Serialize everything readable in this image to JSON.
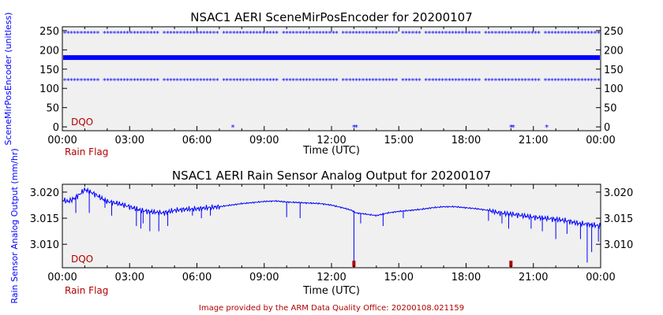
{
  "colors": {
    "data": "#0000ff",
    "flag": "#b00000",
    "plot_bg": "#f0f0f0",
    "axis": "#000000",
    "ylabel": "#0000ff",
    "footer": "#b00000"
  },
  "footer": "Image provided by the ARM Data Quality Office: 20200108.021159",
  "chart_data": [
    {
      "type": "scatter",
      "title": "NSAC1 AERI SceneMirPosEncoder for 20200107",
      "xlabel": "Time (UTC)",
      "ylabel": "SceneMirPosEncoder (unitless)",
      "rain_flag_label": "Rain Flag",
      "dqo_label": "DQO",
      "x_ticks": [
        "00:00",
        "03:00",
        "06:00",
        "09:00",
        "12:00",
        "15:00",
        "18:00",
        "21:00",
        "00:00"
      ],
      "y_ticks": [
        "0",
        "50",
        "100",
        "150",
        "200",
        "250"
      ],
      "xlim_hours": [
        0,
        24
      ],
      "ylim": [
        -10,
        260
      ],
      "grid": false,
      "series": [
        {
          "level": 245,
          "pattern": "dense"
        },
        {
          "level": 180,
          "pattern": "continuous"
        },
        {
          "level": 122,
          "pattern": "dense"
        }
      ],
      "isolated_points": [
        {
          "time_hours": 7.6,
          "value": 0
        },
        {
          "time_hours": 13.0,
          "value": 0
        },
        {
          "time_hours": 13.1,
          "value": 0
        },
        {
          "time_hours": 20.0,
          "value": 0
        },
        {
          "time_hours": 20.1,
          "value": 0
        },
        {
          "time_hours": 21.6,
          "value": 0
        }
      ],
      "rain_flags_hours": []
    },
    {
      "type": "line",
      "title": "NSAC1 AERI Rain Sensor Analog Output for 20200107",
      "xlabel": "Time (UTC)",
      "ylabel": "Rain Sensor Analog Output (mm/hr)",
      "rain_flag_label": "Rain Flag",
      "dqo_label": "DQO",
      "x_ticks": [
        "00:00",
        "03:00",
        "06:00",
        "09:00",
        "12:00",
        "15:00",
        "18:00",
        "21:00",
        "00:00"
      ],
      "y_ticks": [
        "3.010",
        "3.015",
        "3.020"
      ],
      "xlim_hours": [
        0,
        24
      ],
      "ylim": [
        3.0055,
        3.0215
      ],
      "grid": false,
      "x_hours": [
        0,
        0.25,
        0.5,
        0.75,
        1,
        1.25,
        1.5,
        1.75,
        2,
        2.5,
        3,
        3.5,
        4,
        4.5,
        5,
        5.5,
        6,
        6.5,
        7,
        7.5,
        8,
        8.5,
        9,
        9.5,
        10,
        10.5,
        11,
        11.5,
        12,
        12.5,
        12.9,
        13.1,
        13.5,
        14,
        14.5,
        15,
        15.5,
        16,
        16.5,
        17,
        17.5,
        18,
        18.5,
        19,
        19.5,
        20,
        20.5,
        21,
        21.5,
        22,
        22.5,
        23,
        23.5,
        24
      ],
      "values": [
        3.0185,
        3.0182,
        3.0187,
        3.0195,
        3.0205,
        3.02,
        3.0195,
        3.0188,
        3.0182,
        3.0178,
        3.0172,
        3.0165,
        3.0162,
        3.016,
        3.0165,
        3.0167,
        3.0168,
        3.017,
        3.0172,
        3.0175,
        3.0178,
        3.018,
        3.0182,
        3.0183,
        3.0181,
        3.018,
        3.0179,
        3.0178,
        3.0175,
        3.017,
        3.0165,
        3.016,
        3.0158,
        3.0155,
        3.016,
        3.0163,
        3.0165,
        3.0167,
        3.017,
        3.0172,
        3.0172,
        3.017,
        3.0168,
        3.0165,
        3.016,
        3.0158,
        3.0155,
        3.0152,
        3.015,
        3.0148,
        3.0145,
        3.014,
        3.0138,
        3.0135
      ],
      "spikes": [
        {
          "time_hours": 0.6,
          "value": 3.016
        },
        {
          "time_hours": 1.2,
          "value": 3.016
        },
        {
          "time_hours": 1.9,
          "value": 3.017
        },
        {
          "time_hours": 2.2,
          "value": 3.0155
        },
        {
          "time_hours": 3.3,
          "value": 3.0135
        },
        {
          "time_hours": 3.5,
          "value": 3.013
        },
        {
          "time_hours": 3.6,
          "value": 3.014
        },
        {
          "time_hours": 3.9,
          "value": 3.0125
        },
        {
          "time_hours": 4.3,
          "value": 3.0125
        },
        {
          "time_hours": 4.7,
          "value": 3.0135
        },
        {
          "time_hours": 5.8,
          "value": 3.0155
        },
        {
          "time_hours": 6.2,
          "value": 3.015
        },
        {
          "time_hours": 6.6,
          "value": 3.0155
        },
        {
          "time_hours": 10.0,
          "value": 3.0152
        },
        {
          "time_hours": 10.6,
          "value": 3.015
        },
        {
          "time_hours": 13.0,
          "value": 3.0055
        },
        {
          "time_hours": 13.3,
          "value": 3.014
        },
        {
          "time_hours": 14.3,
          "value": 3.0135
        },
        {
          "time_hours": 15.2,
          "value": 3.015
        },
        {
          "time_hours": 19.0,
          "value": 3.0145
        },
        {
          "time_hours": 19.6,
          "value": 3.014
        },
        {
          "time_hours": 19.9,
          "value": 3.013
        },
        {
          "time_hours": 20.9,
          "value": 3.013
        },
        {
          "time_hours": 21.4,
          "value": 3.0125
        },
        {
          "time_hours": 22.0,
          "value": 3.011
        },
        {
          "time_hours": 22.5,
          "value": 3.012
        },
        {
          "time_hours": 23.1,
          "value": 3.011
        },
        {
          "time_hours": 23.4,
          "value": 3.0065
        },
        {
          "time_hours": 23.6,
          "value": 3.0085
        },
        {
          "time_hours": 23.9,
          "value": 3.0105
        }
      ],
      "rain_flags_hours": [
        13.0,
        20.0
      ]
    }
  ]
}
